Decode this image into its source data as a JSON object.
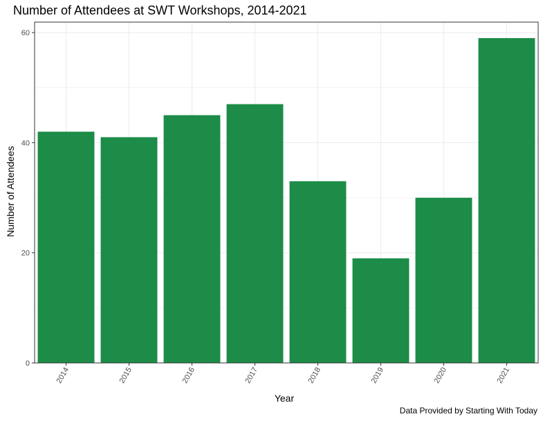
{
  "chart_data": {
    "type": "bar",
    "title": "Number of Attendees at SWT Workshops, 2014-2021",
    "xlabel": "Year",
    "ylabel": "Number of Attendees",
    "caption": "Data Provided by Starting With Today",
    "categories": [
      "2014",
      "2015",
      "2016",
      "2017",
      "2018",
      "2019",
      "2020",
      "2021"
    ],
    "values": [
      42,
      41,
      45,
      47,
      33,
      19,
      30,
      59
    ],
    "ylim": [
      0,
      61.9
    ],
    "yticks": [
      0,
      20,
      40,
      60
    ],
    "grid": true,
    "legend": "none",
    "bar_color": "#1c8c48",
    "grid_color": "#ebebeb",
    "panel_border_color": "#333333"
  }
}
